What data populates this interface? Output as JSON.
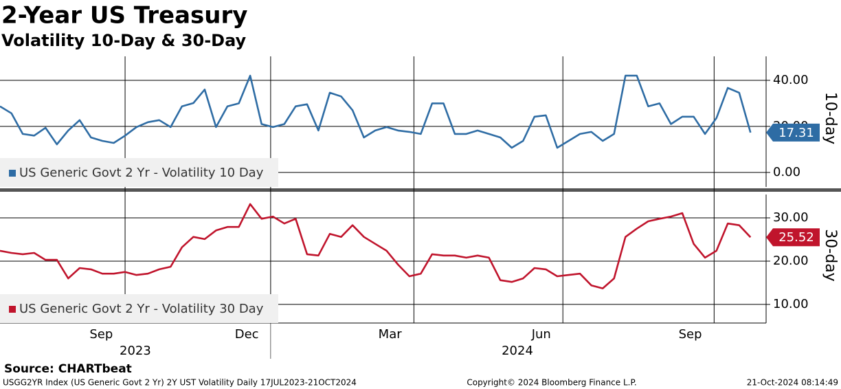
{
  "title": "2-Year US Treasury",
  "subtitle": "Volatility 10-Day & 30-Day",
  "source": "Source: CHARTbeat",
  "footer": [
    "USGG2YR Index (US Generic Govt 2 Yr) 2Y UST Volatility  Daily 17JUL2023-21OCT2024",
    "Copyright© 2024 Bloomberg Finance L.P.",
    "21-Oct-2024 08:14:49"
  ],
  "x_axis": {
    "xticks": [
      {
        "value": 8.9,
        "label": "Sep"
      },
      {
        "value": 21.7,
        "label": "Dec"
      },
      {
        "value": 34.3,
        "label": "Mar"
      },
      {
        "value": 47.6,
        "label": "Jun"
      },
      {
        "value": 60.7,
        "label": "Sep"
      }
    ],
    "xgrid": [
      11.0,
      23.8,
      36.4,
      49.5,
      62.8
    ],
    "years": [
      {
        "value": 11.9,
        "label": "2023"
      },
      {
        "value": 45.5,
        "label": "2024"
      }
    ],
    "year_breaks": [
      23.8
    ]
  },
  "chart_data": [
    {
      "type": "line",
      "axis_label": "10-day",
      "name": "US Generic Govt 2 Yr - Volatility 10 Day",
      "color": "#2e6ca4",
      "categories": [
        null,
        null,
        null,
        null,
        null,
        null,
        null,
        null,
        null,
        null,
        null,
        null,
        null,
        null,
        null,
        null,
        null,
        null,
        null,
        null,
        null,
        null,
        null,
        null,
        null,
        null,
        null,
        null,
        null,
        null,
        null,
        null,
        null,
        null,
        null,
        null,
        null,
        null,
        null,
        null,
        null,
        null,
        null,
        null,
        null,
        null,
        null,
        null,
        null,
        null,
        null,
        null,
        null,
        null,
        null,
        null,
        null,
        null,
        null,
        null,
        null,
        null,
        null,
        null,
        null,
        null,
        null
      ],
      "values": [
        28.7,
        25.7,
        16.7,
        16,
        19.4,
        12.2,
        18.2,
        22.7,
        15.2,
        13.7,
        12.8,
        16,
        19.7,
        21.8,
        22.7,
        19.7,
        28.7,
        30.1,
        36,
        19.7,
        28.7,
        30,
        42,
        21,
        19.7,
        21,
        28.7,
        29.6,
        18.2,
        34.6,
        33,
        27,
        15.2,
        18.2,
        19.7,
        18.2,
        17.6,
        16.7,
        30,
        30,
        16.7,
        16.7,
        18.2,
        16.7,
        15.2,
        10.7,
        13.7,
        24.2,
        24.8,
        10.7,
        13.7,
        16.7,
        17.6,
        13.7,
        16.7,
        42,
        42,
        28.7,
        30,
        21,
        24.2,
        24.2,
        16.7,
        23.6,
        36.7,
        34.6,
        17.31
      ],
      "ylim": [
        -6.3,
        50.4
      ],
      "yticks": [
        {
          "value": 0,
          "label": "0.00"
        },
        {
          "value": 20,
          "label": "20.00"
        },
        {
          "value": 40,
          "label": "40.00"
        }
      ],
      "grid": true
    },
    {
      "type": "line",
      "axis_label": "30-day",
      "name": "US Generic Govt 2 Yr - Volatility 30 Day",
      "color": "#c0142c",
      "categories": [
        null,
        null,
        null,
        null,
        null,
        null,
        null,
        null,
        null,
        null,
        null,
        null,
        null,
        null,
        null,
        null,
        null,
        null,
        null,
        null,
        null,
        null,
        null,
        null,
        null,
        null,
        null,
        null,
        null,
        null,
        null,
        null,
        null,
        null,
        null,
        null,
        null,
        null,
        null,
        null,
        null,
        null,
        null,
        null,
        null,
        null,
        null,
        null,
        null,
        null,
        null,
        null,
        null,
        null,
        null,
        null,
        null,
        null,
        null,
        null,
        null,
        null,
        null,
        null,
        null,
        null,
        null
      ],
      "values": [
        22.4,
        21.9,
        21.6,
        21.9,
        20.3,
        20.3,
        16,
        18.4,
        18.1,
        17.1,
        17.1,
        17.5,
        16.8,
        17.1,
        18.1,
        18.7,
        23.2,
        25.6,
        25.1,
        27.1,
        27.9,
        27.9,
        33.2,
        29.8,
        30.3,
        28.7,
        29.8,
        21.6,
        21.3,
        26.3,
        25.6,
        28.3,
        25.6,
        24,
        22.4,
        19.2,
        16.5,
        17.1,
        21.6,
        21.3,
        21.3,
        20.8,
        21.3,
        20.8,
        15.6,
        15.2,
        16,
        18.4,
        18.1,
        16.5,
        16.8,
        17.1,
        14.4,
        13.7,
        16,
        25.6,
        27.5,
        29.2,
        29.8,
        30.3,
        31.1,
        24,
        20.8,
        22.4,
        28.7,
        28.3,
        25.52
      ],
      "ylim": [
        5.7,
        35.4
      ],
      "yticks": [
        {
          "value": 10,
          "label": "10.00"
        },
        {
          "value": 20,
          "label": "20.00"
        },
        {
          "value": 30,
          "label": "30.00"
        }
      ],
      "grid": true
    }
  ]
}
